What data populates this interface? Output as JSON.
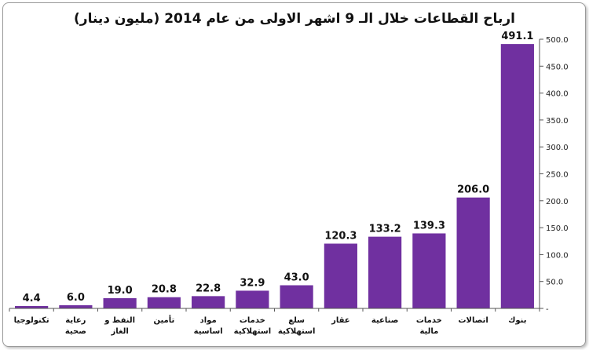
{
  "chart_data": {
    "type": "bar",
    "title": "ارباح القطاعات خلال الـ 9 اشهر الاولى من عام 2014 (مليون دينار)",
    "categories": [
      [
        "تكنولوجيا"
      ],
      [
        "رعاية",
        "صحية"
      ],
      [
        "النفط و",
        "الغاز"
      ],
      [
        "تأمين"
      ],
      [
        "مواد",
        "اساسية"
      ],
      [
        "خدمات",
        "استهلاكية"
      ],
      [
        "سلع",
        "استهلاكية"
      ],
      [
        "عقار"
      ],
      [
        "صناعية"
      ],
      [
        "خدمات",
        "مالية"
      ],
      [
        "اتصالات"
      ],
      [
        "بنوك"
      ]
    ],
    "values": [
      4.4,
      6.0,
      19.0,
      20.8,
      22.8,
      32.9,
      43.0,
      120.3,
      133.2,
      139.3,
      206.0,
      491.1
    ],
    "value_labels": [
      "4.4",
      "6.0",
      "19.0",
      "20.8",
      "22.8",
      "32.9",
      "43.0",
      "120.3",
      "133.2",
      "139.3",
      "206.0",
      "491.1"
    ],
    "ylim": [
      0,
      500
    ],
    "yticks": [
      0,
      50,
      100,
      150,
      200,
      250,
      300,
      350,
      400,
      450,
      500
    ],
    "ytick_labels": [
      "-",
      "50.0",
      "100.0",
      "150.0",
      "200.0",
      "250.0",
      "300.0",
      "350.0",
      "400.0",
      "450.0",
      "500.0"
    ],
    "axis_position": "right",
    "grid": false,
    "bar_color": "#7030a0"
  }
}
